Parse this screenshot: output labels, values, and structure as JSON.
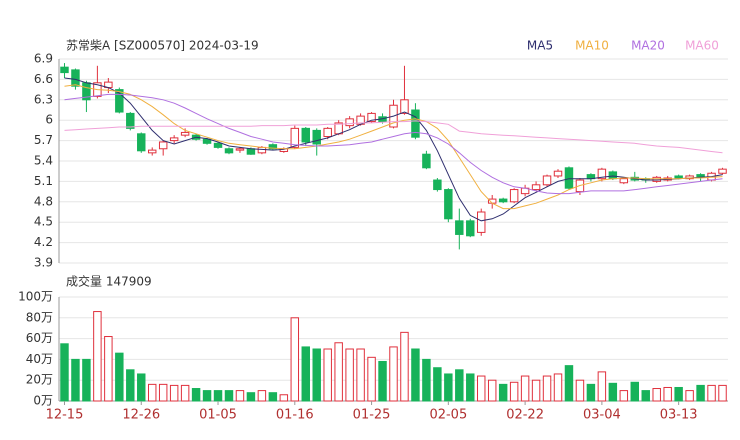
{
  "chart_data": [
    {
      "type": "candlestick",
      "title": "苏常柴A [SZ000570] 2024-03-19",
      "categories": [
        "12-15",
        null,
        null,
        null,
        null,
        null,
        null,
        "12-26",
        null,
        null,
        null,
        null,
        null,
        null,
        "01-05",
        null,
        null,
        null,
        null,
        null,
        null,
        "01-16",
        null,
        null,
        null,
        null,
        null,
        null,
        "01-25",
        null,
        null,
        null,
        null,
        null,
        null,
        "02-05",
        null,
        null,
        null,
        null,
        null,
        null,
        "02-22",
        null,
        null,
        null,
        null,
        null,
        null,
        "03-04",
        null,
        null,
        null,
        null,
        null,
        null,
        "03-13",
        null,
        null,
        null,
        null
      ],
      "open": [
        6.78,
        6.74,
        6.55,
        6.35,
        6.48,
        6.45,
        6.1,
        5.8,
        5.52,
        5.58,
        5.7,
        5.78,
        5.78,
        5.72,
        5.66,
        5.58,
        5.56,
        5.58,
        5.52,
        5.64,
        5.54,
        5.6,
        5.88,
        5.85,
        5.76,
        5.8,
        5.92,
        5.94,
        5.98,
        6.05,
        5.9,
        6.1,
        6.15,
        5.5,
        5.12,
        4.98,
        4.52,
        4.52,
        4.35,
        4.78,
        4.84,
        4.8,
        4.92,
        4.98,
        5.05,
        5.18,
        5.3,
        4.95,
        5.2,
        5.14,
        5.24,
        5.08,
        5.16,
        5.14,
        5.1,
        5.12,
        5.18,
        5.14,
        5.2,
        5.12,
        5.22
      ],
      "high": [
        6.84,
        6.76,
        6.58,
        6.8,
        6.62,
        6.48,
        6.12,
        5.82,
        5.6,
        5.7,
        5.78,
        5.88,
        5.8,
        5.74,
        5.68,
        5.6,
        5.6,
        5.6,
        5.62,
        5.66,
        5.6,
        5.92,
        5.9,
        5.88,
        5.9,
        6.0,
        6.06,
        6.1,
        6.12,
        6.1,
        6.3,
        6.8,
        6.25,
        5.55,
        5.15,
        5.0,
        4.7,
        4.55,
        4.7,
        4.9,
        4.86,
        5.0,
        5.05,
        5.1,
        5.2,
        5.28,
        5.32,
        5.15,
        5.22,
        5.3,
        5.26,
        5.16,
        5.24,
        5.16,
        5.18,
        5.18,
        5.2,
        5.2,
        5.22,
        5.24,
        5.3
      ],
      "low": [
        6.62,
        6.45,
        6.12,
        6.32,
        6.4,
        6.1,
        5.85,
        5.52,
        5.48,
        5.48,
        5.66,
        5.75,
        5.7,
        5.64,
        5.58,
        5.5,
        5.52,
        5.49,
        5.5,
        5.56,
        5.52,
        5.58,
        5.62,
        5.48,
        5.72,
        5.78,
        5.88,
        5.92,
        5.96,
        5.95,
        5.88,
        6.08,
        5.72,
        5.28,
        4.95,
        4.5,
        4.1,
        4.28,
        4.3,
        4.7,
        4.78,
        4.78,
        4.88,
        4.96,
        5.02,
        5.15,
        4.98,
        4.9,
        5.1,
        5.1,
        5.12,
        5.06,
        5.1,
        5.08,
        5.08,
        5.1,
        5.13,
        5.12,
        5.1,
        5.1,
        5.2
      ],
      "close": [
        6.7,
        6.5,
        6.3,
        6.55,
        6.56,
        6.12,
        5.88,
        5.55,
        5.56,
        5.68,
        5.74,
        5.82,
        5.72,
        5.66,
        5.6,
        5.52,
        5.58,
        5.5,
        5.6,
        5.58,
        5.58,
        5.88,
        5.68,
        5.65,
        5.88,
        5.96,
        6.02,
        6.06,
        6.1,
        5.98,
        6.22,
        6.3,
        5.75,
        5.3,
        4.98,
        4.55,
        4.32,
        4.3,
        4.65,
        4.84,
        4.8,
        4.98,
        5.0,
        5.05,
        5.18,
        5.25,
        5.0,
        5.12,
        5.14,
        5.28,
        5.14,
        5.14,
        5.12,
        5.12,
        5.16,
        5.15,
        5.15,
        5.18,
        5.16,
        5.22,
        5.28
      ],
      "up_color": "#e0303c",
      "down_color": "#17b25a",
      "series": [
        {
          "name": "MA5",
          "color": "#2e2e6e",
          "values": [
            6.62,
            6.6,
            6.55,
            6.52,
            6.48,
            6.4,
            6.25,
            6.05,
            5.85,
            5.7,
            5.65,
            5.7,
            5.75,
            5.73,
            5.68,
            5.62,
            5.6,
            5.58,
            5.57,
            5.56,
            5.57,
            5.62,
            5.66,
            5.7,
            5.74,
            5.8,
            5.86,
            5.94,
            6.0,
            6.02,
            6.06,
            6.12,
            6.05,
            5.85,
            5.55,
            5.2,
            4.85,
            4.6,
            4.52,
            4.55,
            4.62,
            4.74,
            4.86,
            4.94,
            5.02,
            5.1,
            5.14,
            5.14,
            5.14,
            5.16,
            5.18,
            5.16,
            5.14,
            5.12,
            5.12,
            5.13,
            5.14,
            5.15,
            5.16,
            5.17,
            5.2
          ]
        },
        {
          "name": "MA10",
          "color": "#f0b040",
          "values": [
            6.5,
            6.52,
            6.48,
            6.45,
            6.44,
            6.42,
            6.38,
            6.3,
            6.2,
            6.08,
            5.95,
            5.85,
            5.8,
            5.75,
            5.7,
            5.66,
            5.64,
            5.62,
            5.6,
            5.59,
            5.58,
            5.58,
            5.6,
            5.62,
            5.65,
            5.68,
            5.72,
            5.78,
            5.84,
            5.9,
            5.96,
            6.0,
            6.02,
            5.98,
            5.88,
            5.7,
            5.45,
            5.2,
            4.95,
            4.78,
            4.7,
            4.7,
            4.74,
            4.78,
            4.84,
            4.9,
            4.98,
            5.04,
            5.08,
            5.12,
            5.14,
            5.15,
            5.15,
            5.14,
            5.14,
            5.14,
            5.14,
            5.15,
            5.15,
            5.16,
            5.17
          ]
        },
        {
          "name": "MA20",
          "color": "#b070e0",
          "values": [
            6.3,
            6.32,
            6.34,
            6.36,
            6.38,
            6.38,
            6.37,
            6.35,
            6.33,
            6.3,
            6.25,
            6.18,
            6.1,
            6.02,
            5.95,
            5.88,
            5.82,
            5.76,
            5.72,
            5.68,
            5.66,
            5.64,
            5.63,
            5.62,
            5.62,
            5.63,
            5.64,
            5.66,
            5.68,
            5.72,
            5.76,
            5.8,
            5.82,
            5.8,
            5.74,
            5.65,
            5.52,
            5.38,
            5.26,
            5.16,
            5.08,
            5.02,
            5.0,
            4.96,
            4.93,
            4.92,
            4.92,
            4.94,
            4.96,
            4.96,
            4.96,
            4.96,
            4.98,
            5.0,
            5.02,
            5.04,
            5.06,
            5.08,
            5.1,
            5.12,
            5.14
          ]
        },
        {
          "name": "MA60",
          "color": "#f0a0d8",
          "values": [
            5.85,
            5.86,
            5.87,
            5.88,
            5.89,
            5.9,
            5.9,
            5.91,
            5.91,
            5.91,
            5.91,
            5.91,
            5.91,
            5.91,
            5.91,
            5.91,
            5.91,
            5.91,
            5.92,
            5.92,
            5.92,
            5.93,
            5.93,
            5.93,
            5.94,
            5.94,
            5.95,
            5.96,
            5.96,
            5.97,
            5.98,
            5.98,
            5.99,
            5.98,
            5.96,
            5.94,
            5.84,
            5.82,
            5.8,
            5.79,
            5.78,
            5.77,
            5.76,
            5.75,
            5.74,
            5.73,
            5.72,
            5.71,
            5.7,
            5.69,
            5.68,
            5.67,
            5.66,
            5.64,
            5.62,
            5.61,
            5.6,
            5.58,
            5.56,
            5.54,
            5.52
          ]
        }
      ],
      "ylim": [
        3.9,
        6.9
      ],
      "yticks": [
        3.9,
        4.2,
        4.5,
        4.8,
        5.1,
        5.4,
        5.7,
        6,
        6.3,
        6.6,
        6.9
      ],
      "grid": true
    },
    {
      "type": "bar",
      "title": "成交量 147909",
      "values": [
        55,
        40,
        40,
        86,
        62,
        46,
        30,
        26,
        16,
        16,
        15,
        15,
        12,
        10,
        10,
        10,
        10,
        8,
        10,
        8,
        6,
        80,
        52,
        50,
        50,
        56,
        50,
        50,
        42,
        38,
        52,
        66,
        50,
        40,
        32,
        26,
        30,
        26,
        24,
        20,
        16,
        18,
        24,
        20,
        24,
        26,
        34,
        20,
        16,
        28,
        17,
        10,
        18,
        10,
        12,
        13,
        13,
        10,
        15,
        15,
        15
      ],
      "ylim": [
        0,
        100
      ],
      "yticks": [
        {
          "value": 0,
          "label": "0万"
        },
        {
          "value": 20,
          "label": "20万"
        },
        {
          "value": 40,
          "label": "40万"
        },
        {
          "value": 60,
          "label": "60万"
        },
        {
          "value": 80,
          "label": "80万"
        },
        {
          "value": 100,
          "label": "100万"
        }
      ]
    }
  ]
}
